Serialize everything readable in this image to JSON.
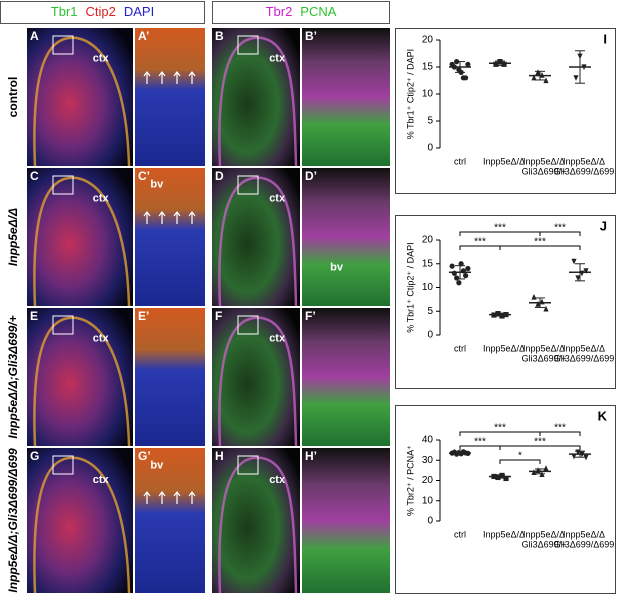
{
  "figure": {
    "headers": [
      [
        "Tbr1",
        "Ctip2",
        "DAPI"
      ],
      [
        "Tbr2",
        "PCNA"
      ]
    ],
    "rows": [
      {
        "label": "control",
        "panels": [
          {
            "id": "A",
            "note": "ctx"
          },
          {
            "id": "A’"
          },
          {
            "id": "B",
            "note": "ctx"
          },
          {
            "id": "B’"
          }
        ]
      },
      {
        "label": "Inpp5eΔ/Δ",
        "panels": [
          {
            "id": "C",
            "note": "ctx"
          },
          {
            "id": "C’",
            "note": "bv"
          },
          {
            "id": "D",
            "note": "ctx"
          },
          {
            "id": "D’",
            "note": "bv"
          }
        ]
      },
      {
        "label": "Inpp5eΔ/Δ;Gli3Δ699/+",
        "panels": [
          {
            "id": "E",
            "note": "ctx"
          },
          {
            "id": "E’"
          },
          {
            "id": "F",
            "note": "ctx"
          },
          {
            "id": "F’"
          }
        ]
      },
      {
        "label": "Inpp5eΔ/Δ;Gli3Δ699/Δ699",
        "panels": [
          {
            "id": "G",
            "note": "ctx"
          },
          {
            "id": "G’",
            "note": "bv"
          },
          {
            "id": "H",
            "note": "ctx"
          },
          {
            "id": "H’"
          }
        ]
      }
    ]
  },
  "chart_data": [
    {
      "type": "dot",
      "title": "I",
      "y_label": "% Tbr1⁺ Ctip2⁺ / DAPI",
      "categories": [
        [
          "ctrl"
        ],
        [
          "Inpp5eΔ/Δ"
        ],
        [
          "Inpp5eΔ/Δ",
          "Gli3Δ699/+"
        ],
        [
          "Inpp5eΔ/Δ",
          "Gli3Δ699/Δ699"
        ]
      ],
      "markers": [
        "circle",
        "square",
        "triangle",
        "triangle-down"
      ],
      "color": "#222222",
      "groups": [
        {
          "values": [
            15.5,
            15,
            16,
            14.5,
            14,
            13,
            13,
            15.5
          ],
          "mean": 15,
          "sd": 1
        },
        {
          "values": [
            15.5,
            16,
            15.5
          ],
          "mean": 15.7,
          "sd": 0.4
        },
        {
          "values": [
            13,
            14,
            13.5,
            12.5
          ],
          "mean": 13.4,
          "sd": 0.8
        },
        {
          "values": [
            13,
            17,
            15
          ],
          "mean": 15,
          "sd": 3
        }
      ],
      "ylim": [
        0,
        20
      ],
      "yticks": [
        0,
        5,
        10,
        15,
        20
      ],
      "brackets": []
    },
    {
      "type": "dot",
      "title": "J",
      "y_label": "% Tbr1⁺ Ctip2⁺ / DAPI",
      "categories": [
        [
          "ctrl"
        ],
        [
          "Inpp5eΔ/Δ"
        ],
        [
          "Inpp5eΔ/Δ",
          "Gli3Δ699/+"
        ],
        [
          "Inpp5eΔ/Δ",
          "Gli3Δ699/Δ699"
        ]
      ],
      "markers": [
        "circle",
        "square",
        "triangle",
        "triangle-down"
      ],
      "color": "#222222",
      "groups": [
        {
          "values": [
            14.5,
            13,
            12,
            11,
            15,
            13.5,
            12.5,
            14
          ],
          "mean": 13.2,
          "sd": 1.4
        },
        {
          "values": [
            4.2,
            4.5,
            4,
            4.3
          ],
          "mean": 4.3,
          "sd": 0.3
        },
        {
          "values": [
            8,
            6.5,
            7,
            5.5
          ],
          "mean": 6.8,
          "sd": 1
        },
        {
          "values": [
            15.5,
            12,
            13,
            13.5
          ],
          "mean": 13.2,
          "sd": 1.8
        }
      ],
      "ylim": [
        0,
        20
      ],
      "yticks": [
        0,
        5,
        10,
        15,
        20
      ],
      "brackets": [
        {
          "from": 0,
          "to": 2,
          "text": "***"
        },
        {
          "from": 2,
          "to": 3,
          "text": "***"
        },
        {
          "from": 0,
          "to": 1,
          "text": "***"
        },
        {
          "from": 1,
          "to": 3,
          "text": "***"
        }
      ]
    },
    {
      "type": "dot",
      "title": "K",
      "y_label": "% Tbr2⁺ / PCNA⁺",
      "categories": [
        [
          "ctrl"
        ],
        [
          "Inpp5eΔ/Δ"
        ],
        [
          "Inpp5eΔ/Δ",
          "Gli3Δ699/+"
        ],
        [
          "Inpp5eΔ/Δ",
          "Gli3Δ699/Δ699"
        ]
      ],
      "markers": [
        "circle",
        "square",
        "triangle",
        "triangle-down"
      ],
      "color": "#222222",
      "groups": [
        {
          "values": [
            33.5,
            34,
            33,
            33.8,
            33.2,
            34.2,
            33.6,
            33.4
          ],
          "mean": 33.5,
          "sd": 0.5
        },
        {
          "values": [
            22,
            21.5,
            22.5,
            21
          ],
          "mean": 22,
          "sd": 0.8
        },
        {
          "values": [
            24,
            25,
            23,
            26
          ],
          "mean": 24.5,
          "sd": 1.2
        },
        {
          "values": [
            32,
            34,
            33,
            31.5
          ],
          "mean": 33,
          "sd": 1.5
        }
      ],
      "ylim": [
        0,
        40
      ],
      "yticks": [
        0,
        10,
        20,
        30,
        40
      ],
      "brackets": [
        {
          "from": 0,
          "to": 2,
          "text": "***"
        },
        {
          "from": 2,
          "to": 3,
          "text": "***"
        },
        {
          "from": 0,
          "to": 1,
          "text": "***"
        },
        {
          "from": 1,
          "to": 3,
          "text": "***"
        },
        {
          "from": 1,
          "to": 2,
          "text": "*"
        }
      ]
    }
  ]
}
